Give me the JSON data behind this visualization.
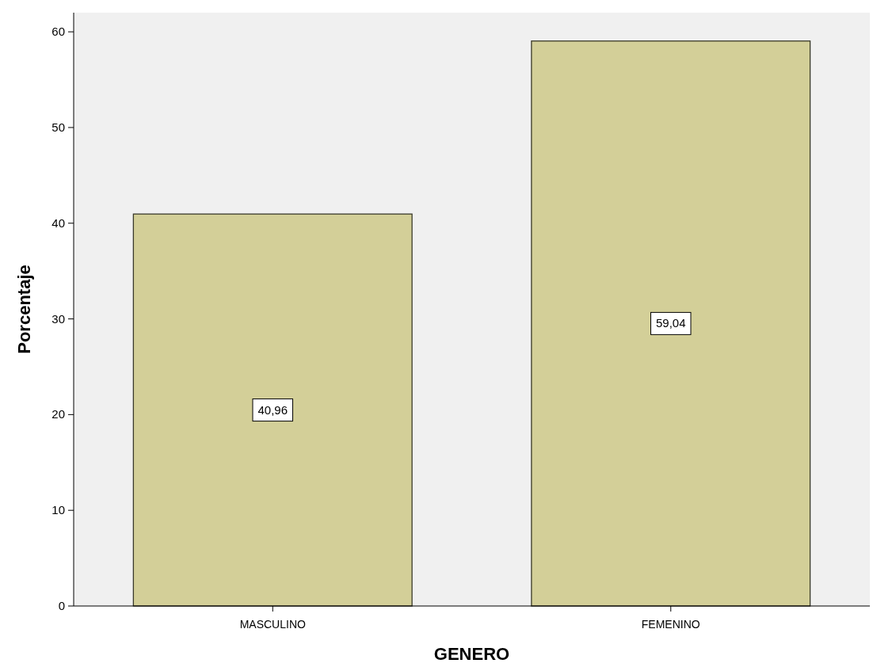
{
  "chart_data": {
    "type": "bar",
    "xlabel": "GENERO",
    "ylabel": "Porcentaje",
    "categories": [
      "MASCULINO",
      "FEMENINO"
    ],
    "values": [
      40.96,
      59.04
    ],
    "value_labels": [
      "40,96",
      "59,04"
    ],
    "color": "#d3cf98",
    "ylim": [
      0,
      62
    ],
    "yticks": [
      0,
      10,
      20,
      30,
      40,
      50,
      60
    ],
    "grid": false
  }
}
